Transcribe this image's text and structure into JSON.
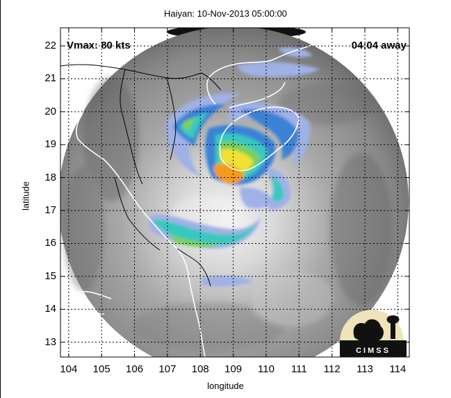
{
  "title": "Haiyan: 10-Nov-2013 05:00:00",
  "xlabel": "longitude",
  "ylabel": "latitude",
  "x_ticks": [
    "104",
    "105",
    "106",
    "107",
    "108",
    "109",
    "110",
    "111",
    "112",
    "113",
    "114"
  ],
  "y_ticks": [
    "22",
    "21",
    "20",
    "19",
    "18",
    "17",
    "16",
    "15",
    "14",
    "13"
  ],
  "vmax_label": "Vmax: 80 kts",
  "time_label": "04:04 away",
  "logo_text": "CIMSS",
  "map": {
    "lon_range": [
      103.75,
      114.35
    ],
    "lat_range": [
      12.55,
      22.55
    ],
    "storm_center": {
      "lon": 109.1,
      "lat": 17.5
    },
    "colors": {
      "background_gray": "#8c8c8c",
      "cloud_white": "#e8e8e8",
      "band_light_blue": "#9fb1e6",
      "band_blue": "#3a82d6",
      "band_cyan": "#38c8c0",
      "band_green": "#79d15a",
      "band_yellow": "#f2e135",
      "band_orange": "#f59b1c",
      "coastline": "#ffffff",
      "grid": "#000000"
    }
  }
}
